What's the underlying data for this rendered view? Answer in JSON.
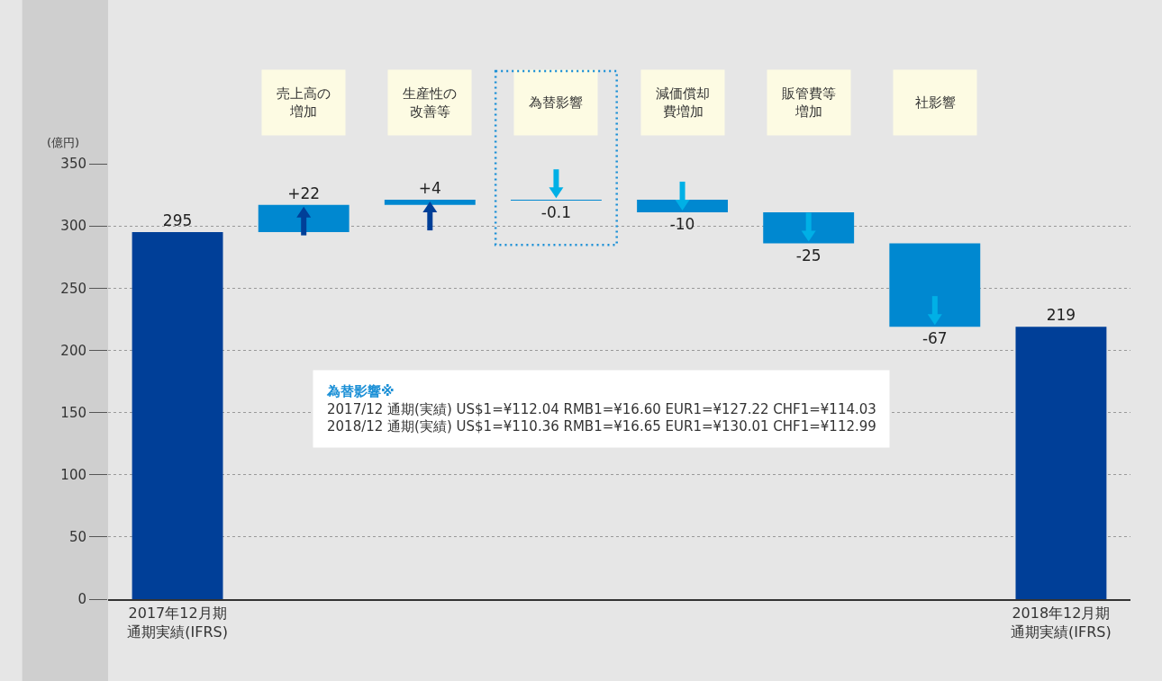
{
  "chart_data": {
    "type": "bar",
    "ylabel": "(億円)",
    "categories": [
      "2017年12月期通期実績(IFRS)",
      "売上高の増加",
      "生産性の改善等",
      "為替影響",
      "減価償却費増加",
      "販管費等増加",
      "社影響",
      "2018年12月期通期実績(IFRS)"
    ],
    "values": [
      295,
      22,
      4,
      -0.1,
      -10,
      -25,
      -67,
      219
    ],
    "base": [
      0,
      295,
      317,
      321,
      321,
      311,
      286,
      0
    ],
    "colors": [
      "#003f98",
      "#0088d0",
      "#0088d0",
      "#0088d0",
      "#0088d0",
      "#0088d0",
      "#0088d0",
      "#003f98"
    ],
    "value_labels": [
      "295",
      "+22",
      "+4",
      "-0.1",
      "-10",
      "-25",
      "-67",
      "219"
    ],
    "ylim": [
      0,
      350
    ],
    "yticks": [
      0,
      50,
      100,
      150,
      200,
      250,
      300,
      350
    ],
    "grid": "y",
    "annotations": [
      "為替影響※\n2017/12 通期(実績) US$1=¥112.04 RMB1=¥16.60 EUR1=¥127.22 CHF1=¥114.03\n2018/12 通期(実績) US$1=¥110.36 RMB1=¥16.65 EUR1=¥130.01 CHF1=¥112.99"
    ]
  }
}
